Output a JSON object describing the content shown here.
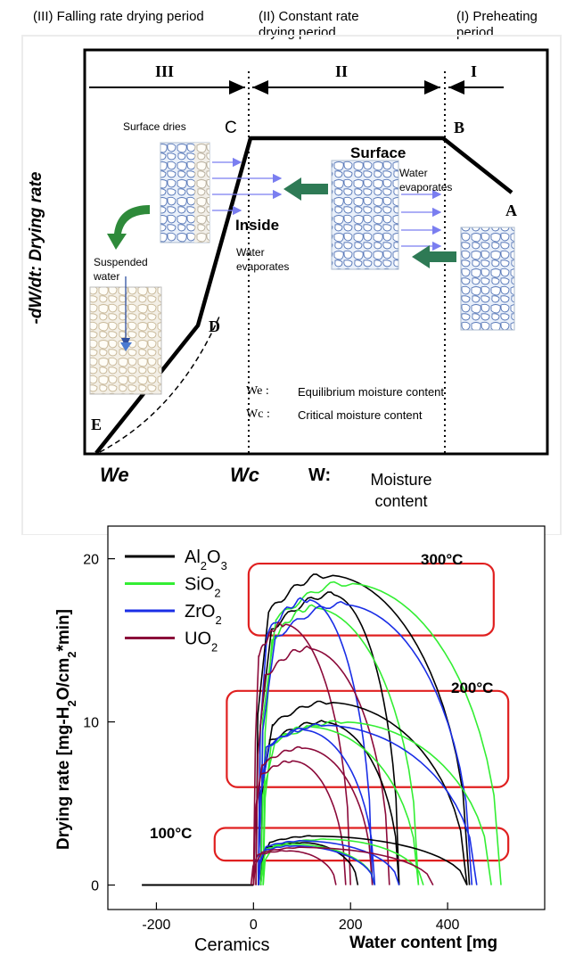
{
  "diagram": {
    "headers": {
      "p3": "(III) Falling rate drying period",
      "p2": "(II) Constant rate drying period",
      "p1": "(I) Preheating period"
    },
    "roman": {
      "r3": "III",
      "r2": "II",
      "r1": "I"
    },
    "points": {
      "a": "A",
      "b": "B",
      "c": "C",
      "d": "D",
      "e": "E"
    },
    "labels": {
      "surface_dries": "Surface dries",
      "surface": "Surface",
      "water_evaporates_surface": "Water evaporates",
      "inside": "Inside",
      "water_evaporates_inside": "Water evaporates",
      "suspended_water": "Suspended water",
      "we_def_sym": "We",
      "we_def": "Equilibrium moisture content",
      "wc_def_sym": "Wc",
      "wc_def": "Critical moisture content",
      "y_axis": "-dW/dt: Drying rate",
      "x_we": "We",
      "x_wc": "Wc",
      "x_w": "W:",
      "x_w_desc": "Moisture content"
    }
  },
  "chart_data": {
    "type": "line",
    "ylabel": "Drying rate [mg-H2O/cm2*min]",
    "xlabel": "Water content [mg",
    "x_extra_label": "Ceramics",
    "xlim": [
      -300,
      600
    ],
    "ylim": [
      -1.5,
      22
    ],
    "xticks": [
      -200,
      0,
      200,
      400
    ],
    "yticks": [
      0,
      10,
      20
    ],
    "legend_position": "top-left",
    "legend": [
      {
        "name": "Al2O3",
        "color": "#000000"
      },
      {
        "name": "SiO2",
        "color": "#33ee33"
      },
      {
        "name": "ZrO2",
        "color": "#1a2ee6"
      },
      {
        "name": "UO2",
        "color": "#8b0a3a"
      }
    ],
    "temperature_labels": [
      "300°C",
      "200°C",
      "100°C"
    ],
    "baseline": {
      "x": [
        -230,
        0
      ],
      "y": [
        0,
        0
      ]
    },
    "series": [
      {
        "material": "Al2O3",
        "group": "300°C",
        "x0": 5,
        "xp": 150,
        "x1": 445,
        "peak": 19.0
      },
      {
        "material": "Al2O3",
        "group": "300°C",
        "x0": 10,
        "xp": 160,
        "x1": 300,
        "peak": 17.8
      },
      {
        "material": "SiO2",
        "group": "300°C",
        "x0": 15,
        "xp": 190,
        "x1": 510,
        "peak": 18.5
      },
      {
        "material": "SiO2",
        "group": "300°C",
        "x0": 20,
        "xp": 120,
        "x1": 340,
        "peak": 17.0
      },
      {
        "material": "ZrO2",
        "group": "300°C",
        "x0": 10,
        "xp": 110,
        "x1": 245,
        "peak": 17.5
      },
      {
        "material": "ZrO2",
        "group": "300°C",
        "x0": 15,
        "xp": 180,
        "x1": 450,
        "peak": 17.2
      },
      {
        "material": "UO2",
        "group": "300°C",
        "x0": 0,
        "xp": 60,
        "x1": 200,
        "peak": 16.0
      },
      {
        "material": "UO2",
        "group": "300°C",
        "x0": 5,
        "xp": 110,
        "x1": 280,
        "peak": 14.5
      },
      {
        "material": "Al2O3",
        "group": "200°C",
        "x0": 15,
        "xp": 150,
        "x1": 440,
        "peak": 11.2
      },
      {
        "material": "Al2O3",
        "group": "200°C",
        "x0": 10,
        "xp": 140,
        "x1": 300,
        "peak": 10.0
      },
      {
        "material": "SiO2",
        "group": "200°C",
        "x0": 15,
        "xp": 180,
        "x1": 490,
        "peak": 10.0
      },
      {
        "material": "SiO2",
        "group": "200°C",
        "x0": 20,
        "xp": 110,
        "x1": 340,
        "peak": 9.7
      },
      {
        "material": "ZrO2",
        "group": "200°C",
        "x0": 10,
        "xp": 140,
        "x1": 460,
        "peak": 9.8
      },
      {
        "material": "ZrO2",
        "group": "200°C",
        "x0": 10,
        "xp": 100,
        "x1": 250,
        "peak": 9.5
      },
      {
        "material": "UO2",
        "group": "200°C",
        "x0": 0,
        "xp": 100,
        "x1": 245,
        "peak": 8.4
      },
      {
        "material": "UO2",
        "group": "200°C",
        "x0": 0,
        "xp": 80,
        "x1": 190,
        "peak": 7.6
      },
      {
        "material": "Al2O3",
        "group": "100°C",
        "x0": 15,
        "xp": 120,
        "x1": 440,
        "peak": 3.0
      },
      {
        "material": "Al2O3",
        "group": "100°C",
        "x0": 10,
        "xp": 100,
        "x1": 215,
        "peak": 2.6
      },
      {
        "material": "SiO2",
        "group": "100°C",
        "x0": 20,
        "xp": 150,
        "x1": 350,
        "peak": 2.8
      },
      {
        "material": "SiO2",
        "group": "100°C",
        "x0": 15,
        "xp": 80,
        "x1": 250,
        "peak": 2.5
      },
      {
        "material": "ZrO2",
        "group": "100°C",
        "x0": 10,
        "xp": 100,
        "x1": 300,
        "peak": 2.7
      },
      {
        "material": "ZrO2",
        "group": "100°C",
        "x0": 10,
        "xp": 80,
        "x1": 250,
        "peak": 2.4
      },
      {
        "material": "UO2",
        "group": "100°C",
        "x0": 0,
        "xp": 100,
        "x1": 370,
        "peak": 2.3
      },
      {
        "material": "UO2",
        "group": "100°C",
        "x0": -5,
        "xp": 70,
        "x1": 170,
        "peak": 2.1
      }
    ]
  }
}
